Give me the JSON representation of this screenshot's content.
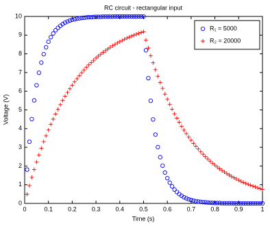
{
  "chart_data": {
    "type": "scatter",
    "title": "RC circuit - rectangular input",
    "x_label": "Time (s)",
    "y_label": "Voltage (V)",
    "xlim": [
      0,
      1
    ],
    "ylim": [
      0,
      10
    ],
    "xticks": [
      0,
      0.1,
      0.2,
      0.3,
      0.4,
      0.5,
      0.6,
      0.7,
      0.8,
      0.9,
      1
    ],
    "yticks": [
      0,
      1,
      2,
      3,
      4,
      5,
      6,
      7,
      8,
      9,
      10
    ],
    "legend_position": "upper right",
    "x": [
      0.01,
      0.02,
      0.03,
      0.04,
      0.05,
      0.06,
      0.07,
      0.08,
      0.09,
      0.1,
      0.11,
      0.12,
      0.13,
      0.14,
      0.15,
      0.16,
      0.17,
      0.18,
      0.19,
      0.2,
      0.21,
      0.22,
      0.23,
      0.24,
      0.25,
      0.26,
      0.27,
      0.28,
      0.29,
      0.3,
      0.31,
      0.32,
      0.33,
      0.34,
      0.35,
      0.36,
      0.37,
      0.38,
      0.39,
      0.4,
      0.41,
      0.42,
      0.43,
      0.44,
      0.45,
      0.46,
      0.47,
      0.48,
      0.49,
      0.5,
      0.51,
      0.52,
      0.53,
      0.54,
      0.55,
      0.56,
      0.57,
      0.58,
      0.59,
      0.6,
      0.61,
      0.62,
      0.63,
      0.64,
      0.65,
      0.66,
      0.67,
      0.68,
      0.69,
      0.7,
      0.71,
      0.72,
      0.73,
      0.74,
      0.75,
      0.76,
      0.77,
      0.78,
      0.79,
      0.8,
      0.81,
      0.82,
      0.83,
      0.84,
      0.85,
      0.86,
      0.87,
      0.88,
      0.89,
      0.9,
      0.91,
      0.92,
      0.93,
      0.94,
      0.95,
      0.96,
      0.97,
      0.98,
      0.99,
      1
    ],
    "series": [
      {
        "name": "R₁ = 5000",
        "color": "#0000ff",
        "marker": "circle",
        "values": [
          1.81,
          3.3,
          4.51,
          5.51,
          6.32,
          6.99,
          7.53,
          7.98,
          8.35,
          8.65,
          8.89,
          9.09,
          9.26,
          9.39,
          9.5,
          9.59,
          9.67,
          9.73,
          9.78,
          9.82,
          9.85,
          9.88,
          9.9,
          9.92,
          9.93,
          9.95,
          9.96,
          9.96,
          9.97,
          9.98,
          9.98,
          9.98,
          9.99,
          9.99,
          9.99,
          9.99,
          9.99,
          10,
          10,
          10,
          10,
          10,
          10,
          10,
          10,
          10,
          10,
          10,
          10,
          10,
          8.19,
          6.7,
          5.49,
          4.49,
          3.68,
          3.01,
          2.47,
          2.02,
          1.65,
          1.35,
          1.11,
          0.91,
          0.74,
          0.61,
          0.5,
          0.41,
          0.33,
          0.27,
          0.22,
          0.18,
          0.15,
          0.12,
          0.1,
          0.08,
          0.07,
          0.06,
          0.05,
          0.04,
          0.03,
          0.02,
          0.02,
          0.02,
          0.01,
          0.01,
          0.01,
          0.01,
          0.01,
          0,
          0,
          0,
          0,
          0,
          0,
          0,
          0,
          0,
          0,
          0,
          0,
          0
        ]
      },
      {
        "name": "R₂ = 20000",
        "color": "#ff0000",
        "marker": "plus",
        "values": [
          0.49,
          0.95,
          1.39,
          1.81,
          2.21,
          2.59,
          2.95,
          3.3,
          3.62,
          3.93,
          4.23,
          4.51,
          4.78,
          5.03,
          5.28,
          5.51,
          5.73,
          5.93,
          6.13,
          6.32,
          6.5,
          6.67,
          6.83,
          6.99,
          7.14,
          7.28,
          7.41,
          7.53,
          7.65,
          7.77,
          7.88,
          7.98,
          8.08,
          8.17,
          8.26,
          8.35,
          8.43,
          8.5,
          8.58,
          8.65,
          8.71,
          8.78,
          8.84,
          8.89,
          8.95,
          9.0,
          9.05,
          9.09,
          9.14,
          9.18,
          8.73,
          8.31,
          7.9,
          7.52,
          7.15,
          6.8,
          6.47,
          6.15,
          5.85,
          5.57,
          5.3,
          5.04,
          4.79,
          4.56,
          4.34,
          4.12,
          3.92,
          3.73,
          3.55,
          3.38,
          3.21,
          3.06,
          2.91,
          2.76,
          2.63,
          2.5,
          2.38,
          2.26,
          2.15,
          2.05,
          1.95,
          1.85,
          1.76,
          1.68,
          1.6,
          1.52,
          1.44,
          1.37,
          1.31,
          1.24,
          1.18,
          1.12,
          1.07,
          1.02,
          0.97,
          0.92,
          0.88,
          0.83,
          0.79,
          0.75
        ]
      }
    ]
  }
}
